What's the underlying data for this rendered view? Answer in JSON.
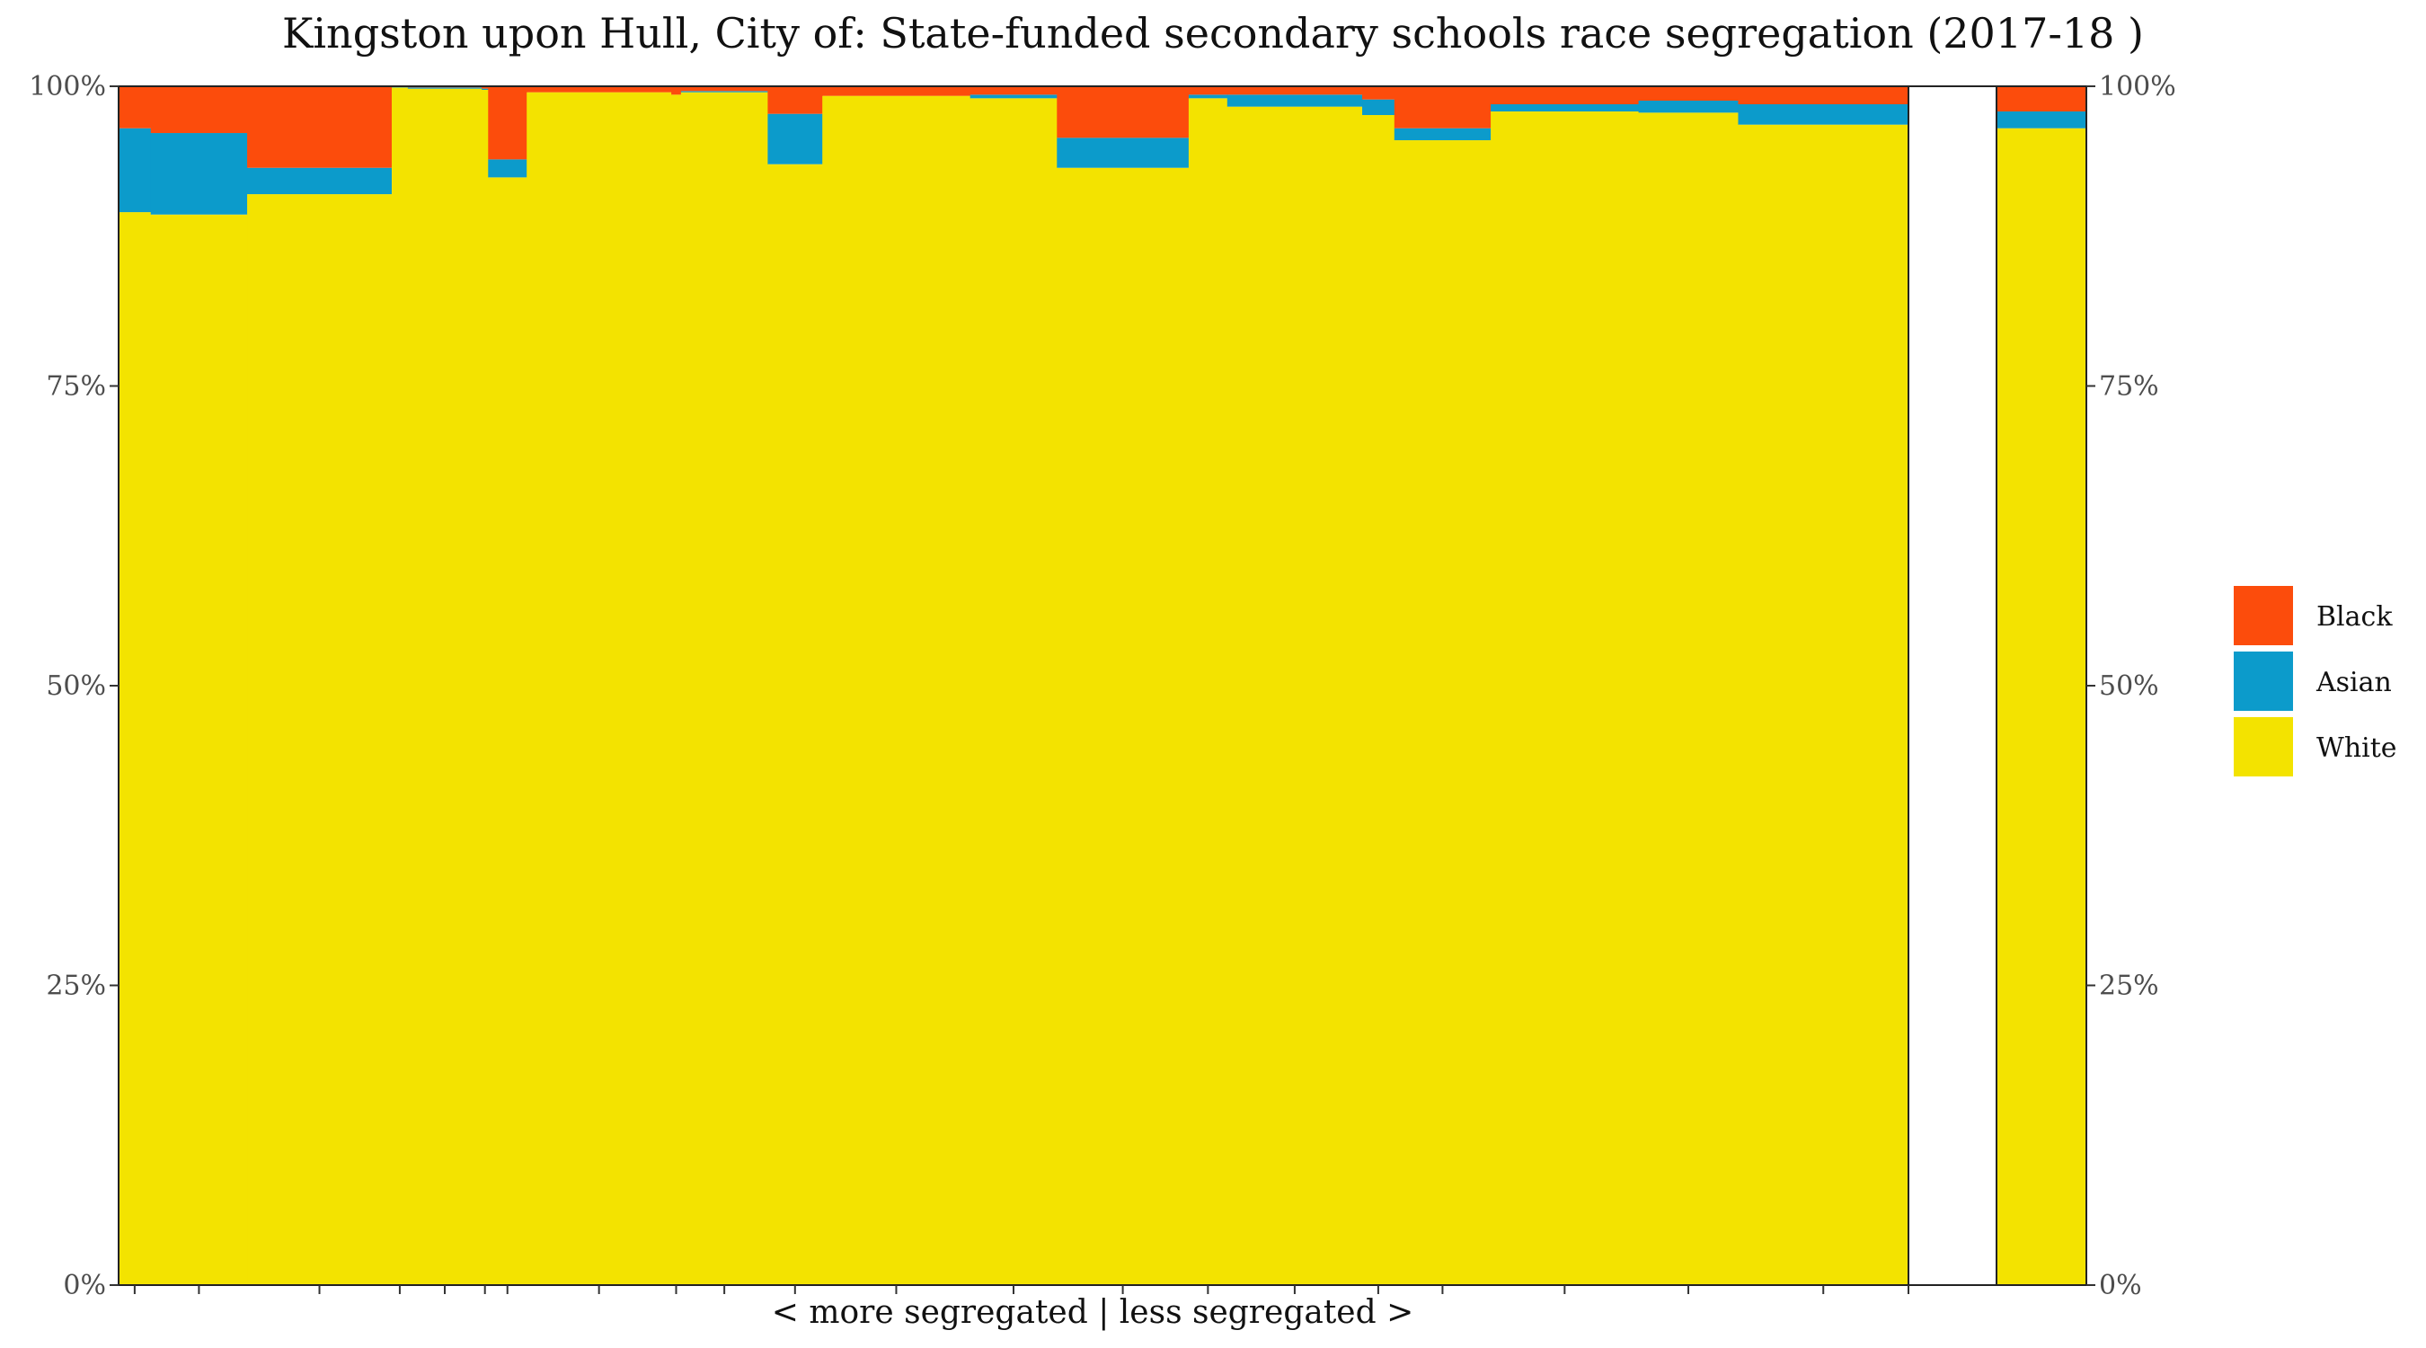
{
  "chart_data": {
    "type": "bar",
    "subtype": "marimekko (variable-width stacked bars, 100%)",
    "title": "Kingston upon Hull, City of: State-funded secondary schools race segregation (2017-18 )",
    "xlabel": "< more segregated | less segregated >",
    "ylabel": "",
    "ylim": [
      0,
      100
    ],
    "yticks": [
      "0%",
      "25%",
      "50%",
      "75%",
      "100%"
    ],
    "secondary_y_axis": true,
    "grid": false,
    "legend_position": "right",
    "colors": {
      "Black": "#FC4C0C",
      "Asian": "#0C9BCB",
      "White": "#F3E300"
    },
    "legend": [
      "Black",
      "Asian",
      "White"
    ],
    "series_order_bottom_to_top": [
      "White",
      "Asian",
      "Black"
    ],
    "schools_relative_width": [
      1.0,
      3.0,
      4.5,
      0.5,
      2.3,
      0.2,
      1.2,
      4.5,
      0.3,
      2.7,
      1.7,
      4.6,
      2.7,
      4.1,
      1.2,
      4.2,
      1.0,
      3.0,
      4.6,
      3.1,
      5.3
    ],
    "schools_shares": {
      "White": [
        89.5,
        89.3,
        91.0,
        99.9,
        99.8,
        99.7,
        92.4,
        99.5,
        99.3,
        99.5,
        93.5,
        99.2,
        99.0,
        93.2,
        99.0,
        98.3,
        97.6,
        95.5,
        97.9,
        97.8,
        96.8
      ],
      "Asian": [
        7.0,
        6.8,
        2.2,
        0.05,
        0.1,
        0.1,
        1.5,
        0.0,
        0.0,
        0.1,
        4.2,
        0.0,
        0.3,
        2.5,
        0.3,
        1.0,
        1.3,
        1.0,
        0.6,
        1.0,
        1.7
      ],
      "Black": [
        3.5,
        3.9,
        6.8,
        0.05,
        0.1,
        0.2,
        6.1,
        0.5,
        0.7,
        0.4,
        2.3,
        0.8,
        0.7,
        4.3,
        0.7,
        0.7,
        1.1,
        3.5,
        1.5,
        1.2,
        1.5
      ]
    },
    "total_bar": {
      "White": 96.5,
      "Asian": 1.4,
      "Black": 2.1
    }
  }
}
